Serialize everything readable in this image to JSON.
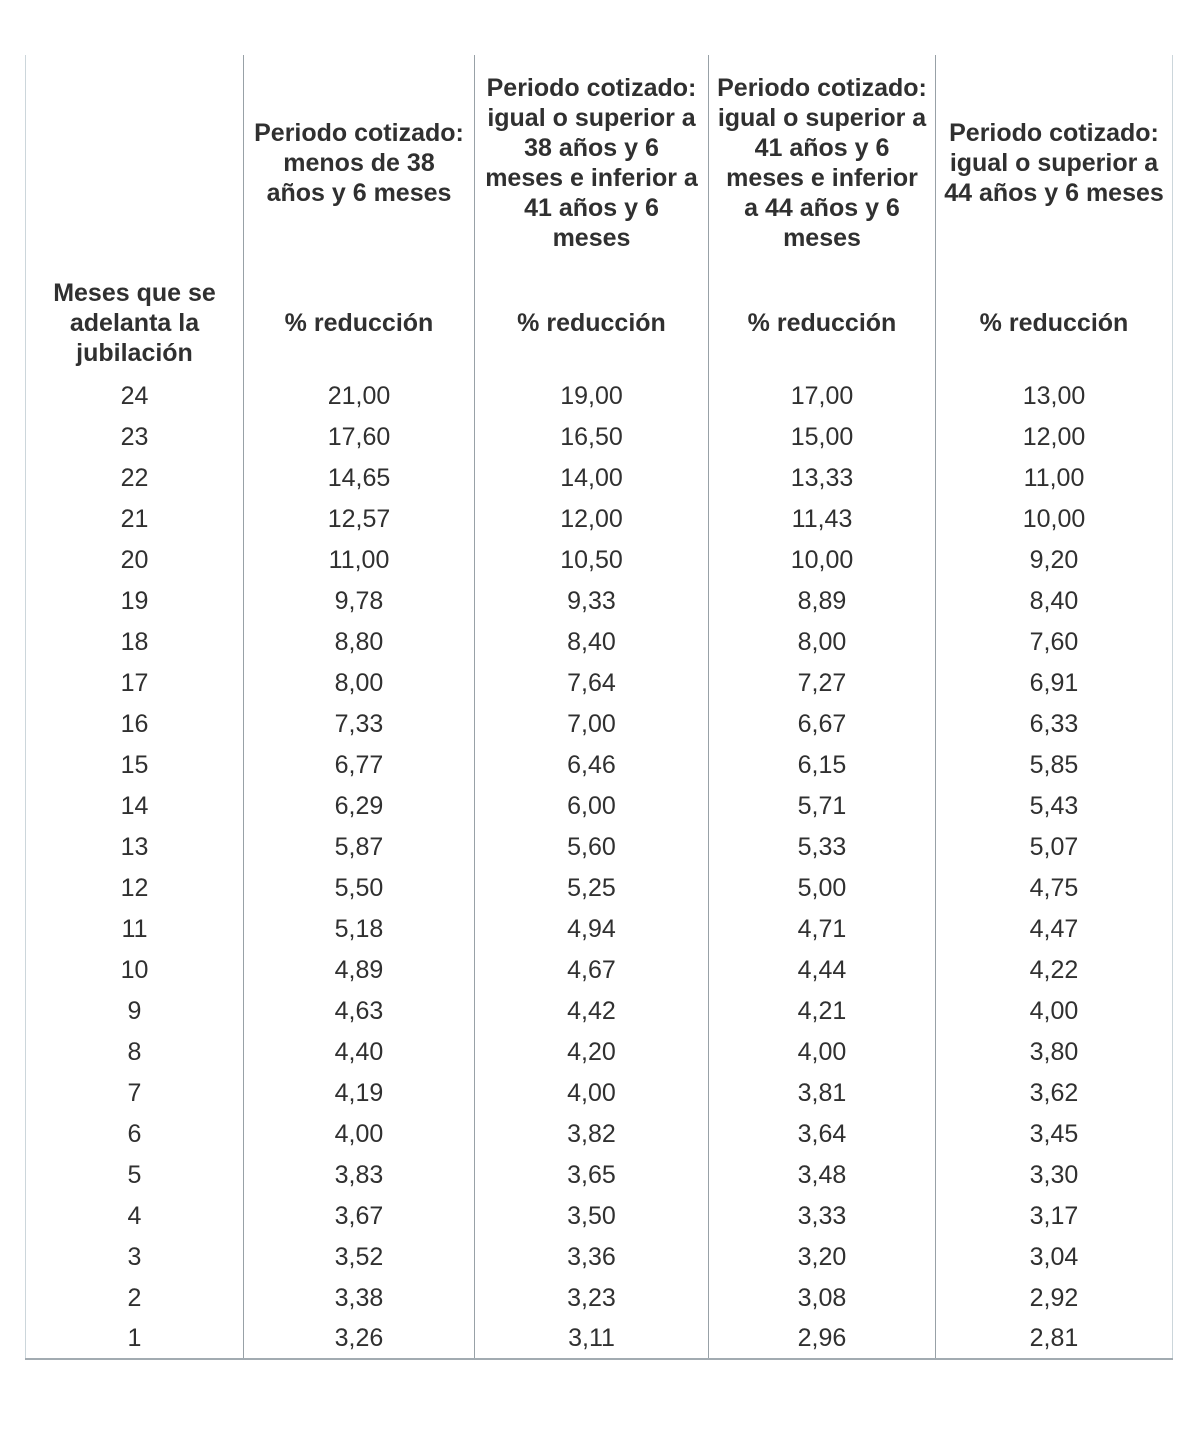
{
  "table": {
    "row_header_label": "Meses que se adelanta la jubilación",
    "columns": [
      {
        "title": "Periodo cotizado: menos de 38 años y 6 meses",
        "subtitle": "% reducción"
      },
      {
        "title": "Periodo cotizado: igual o superior a 38 años y 6 meses e inferior a 41 años y 6 meses",
        "subtitle": "% reducción"
      },
      {
        "title": "Periodo cotizado: igual o superior a 41 años y 6 meses e inferior a 44 años y 6 meses",
        "subtitle": "% reducción"
      },
      {
        "title": "Periodo cotizado: igual o superior a 44 años y 6 meses",
        "subtitle": "% reducción"
      }
    ],
    "rows": [
      {
        "months": "24",
        "values": [
          "21,00",
          "19,00",
          "17,00",
          "13,00"
        ]
      },
      {
        "months": "23",
        "values": [
          "17,60",
          "16,50",
          "15,00",
          "12,00"
        ]
      },
      {
        "months": "22",
        "values": [
          "14,65",
          "14,00",
          "13,33",
          "11,00"
        ]
      },
      {
        "months": "21",
        "values": [
          "12,57",
          "12,00",
          "11,43",
          "10,00"
        ]
      },
      {
        "months": "20",
        "values": [
          "11,00",
          "10,50",
          "10,00",
          "9,20"
        ]
      },
      {
        "months": "19",
        "values": [
          "9,78",
          "9,33",
          "8,89",
          "8,40"
        ]
      },
      {
        "months": "18",
        "values": [
          "8,80",
          "8,40",
          "8,00",
          "7,60"
        ]
      },
      {
        "months": "17",
        "values": [
          "8,00",
          "7,64",
          "7,27",
          "6,91"
        ]
      },
      {
        "months": "16",
        "values": [
          "7,33",
          "7,00",
          "6,67",
          "6,33"
        ]
      },
      {
        "months": "15",
        "values": [
          "6,77",
          "6,46",
          "6,15",
          "5,85"
        ]
      },
      {
        "months": "14",
        "values": [
          "6,29",
          "6,00",
          "5,71",
          "5,43"
        ]
      },
      {
        "months": "13",
        "values": [
          "5,87",
          "5,60",
          "5,33",
          "5,07"
        ]
      },
      {
        "months": "12",
        "values": [
          "5,50",
          "5,25",
          "5,00",
          "4,75"
        ]
      },
      {
        "months": "11",
        "values": [
          "5,18",
          "4,94",
          "4,71",
          "4,47"
        ]
      },
      {
        "months": "10",
        "values": [
          "4,89",
          "4,67",
          "4,44",
          "4,22"
        ]
      },
      {
        "months": "9",
        "values": [
          "4,63",
          "4,42",
          "4,21",
          "4,00"
        ]
      },
      {
        "months": "8",
        "values": [
          "4,40",
          "4,20",
          "4,00",
          "3,80"
        ]
      },
      {
        "months": "7",
        "values": [
          "4,19",
          "4,00",
          "3,81",
          "3,62"
        ]
      },
      {
        "months": "6",
        "values": [
          "4,00",
          "3,82",
          "3,64",
          "3,45"
        ]
      },
      {
        "months": "5",
        "values": [
          "3,83",
          "3,65",
          "3,48",
          "3,30"
        ]
      },
      {
        "months": "4",
        "values": [
          "3,67",
          "3,50",
          "3,33",
          "3,17"
        ]
      },
      {
        "months": "3",
        "values": [
          "3,52",
          "3,36",
          "3,20",
          "3,04"
        ]
      },
      {
        "months": "2",
        "values": [
          "3,38",
          "3,23",
          "3,08",
          "2,92"
        ]
      },
      {
        "months": "1",
        "values": [
          "3,26",
          "3,11",
          "2,96",
          "2,81"
        ]
      }
    ],
    "colors": {
      "text": "#303030",
      "inner_border": "#98a1a7",
      "outer_border": "#ccd6db",
      "bottom_border": "#a2abb1",
      "background": "#ffffff"
    }
  }
}
